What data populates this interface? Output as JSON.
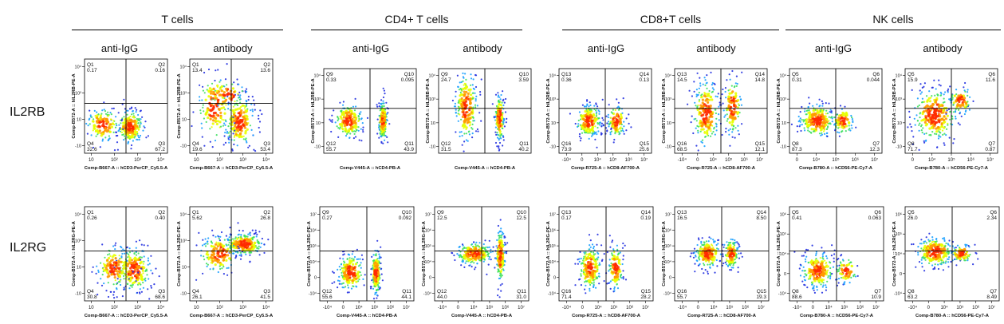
{
  "groups": [
    {
      "title": "T cells",
      "columns": [
        "anti-IgG",
        "antibody"
      ]
    },
    {
      "title": "CD4+ T cells",
      "columns": [
        "anti-IgG",
        "antibody"
      ]
    },
    {
      "title": "CD8+T cells",
      "columns": [
        "anti-IgG",
        "antibody"
      ]
    },
    {
      "title": "NK cells",
      "columns": [
        "anti-IgG",
        "antibody"
      ]
    }
  ],
  "rows": [
    "IL2RB",
    "IL2RG"
  ],
  "chart_data": [
    {
      "type": "scatter",
      "group": "T cells",
      "condition": "anti-IgG",
      "marker": "IL2RB",
      "xlabel": "Comp-B667-A :: hCD3-PerCP_Cy5.5-A",
      "ylabel": "Comp-B572-A :: hIL2RB-PE-A",
      "x_ticks": [
        "10",
        "10²",
        "10³",
        "10⁴"
      ],
      "y_ticks": [
        "10⁴",
        "10³",
        "10",
        "-10"
      ],
      "quadrants": [
        {
          "name": "Q1",
          "pct": "0.17"
        },
        {
          "name": "Q2",
          "pct": "0.16"
        },
        {
          "name": "Q3",
          "pct": "67.2"
        },
        {
          "name": "Q4",
          "pct": "32.6"
        }
      ],
      "populations": [
        {
          "x": 0.55,
          "y": 0.28,
          "sx": 0.08,
          "sy": 0.09,
          "n": 220
        },
        {
          "x": 0.22,
          "y": 0.3,
          "sx": 0.1,
          "sy": 0.09,
          "n": 140
        }
      ]
    },
    {
      "type": "scatter",
      "group": "T cells",
      "condition": "antibody",
      "marker": "IL2RB",
      "xlabel": "Comp-B667-A :: hCD3-PerCP_Cy5.5-A",
      "ylabel": "Comp-B572-A :: hIL2RB-PE-A",
      "x_ticks": [
        "10",
        "10²",
        "10³",
        "10⁴"
      ],
      "y_ticks": [
        "10⁴",
        "10³",
        "10",
        "-10"
      ],
      "quadrants": [
        {
          "name": "Q1",
          "pct": "13.4"
        },
        {
          "name": "Q2",
          "pct": "13.6"
        },
        {
          "name": "Q3",
          "pct": "53.4"
        },
        {
          "name": "Q4",
          "pct": "19.6"
        }
      ],
      "populations": [
        {
          "x": 0.6,
          "y": 0.33,
          "sx": 0.09,
          "sy": 0.14,
          "n": 220
        },
        {
          "x": 0.3,
          "y": 0.5,
          "sx": 0.1,
          "sy": 0.18,
          "n": 150
        },
        {
          "x": 0.45,
          "y": 0.62,
          "sx": 0.12,
          "sy": 0.08,
          "n": 60
        }
      ]
    },
    {
      "type": "scatter",
      "group": "CD4+ T cells",
      "condition": "anti-IgG",
      "marker": "IL2RB",
      "xlabel": "Comp-V445-A :: hCD4-PB-A",
      "ylabel": "Comp-B572-A :: hIL2RB-PE-A",
      "x_ticks": [],
      "y_ticks": [
        "10⁴",
        "10³",
        "10",
        "-10"
      ],
      "quadrants": [
        {
          "name": "Q9",
          "pct": "0.33"
        },
        {
          "name": "Q10",
          "pct": "0.095"
        },
        {
          "name": "Q11",
          "pct": "43.9"
        },
        {
          "name": "Q12",
          "pct": "55.7"
        }
      ],
      "populations": [
        {
          "x": 0.27,
          "y": 0.38,
          "sx": 0.08,
          "sy": 0.1,
          "n": 180
        },
        {
          "x": 0.64,
          "y": 0.38,
          "sx": 0.025,
          "sy": 0.12,
          "n": 170
        }
      ]
    },
    {
      "type": "scatter",
      "group": "CD4+ T cells",
      "condition": "antibody",
      "marker": "IL2RB",
      "xlabel": "Comp-V445-A :: hCD4-PB-A",
      "ylabel": "Comp-B572-A :: hIL2RB-PE-A",
      "x_ticks": [],
      "y_ticks": [
        "10⁴",
        "10³",
        "10",
        "-10"
      ],
      "quadrants": [
        {
          "name": "Q9",
          "pct": "24.7"
        },
        {
          "name": "Q10",
          "pct": "3.59"
        },
        {
          "name": "Q11",
          "pct": "40.2"
        },
        {
          "name": "Q12",
          "pct": "31.5"
        }
      ],
      "populations": [
        {
          "x": 0.3,
          "y": 0.55,
          "sx": 0.06,
          "sy": 0.2,
          "n": 210
        },
        {
          "x": 0.66,
          "y": 0.42,
          "sx": 0.025,
          "sy": 0.14,
          "n": 170
        }
      ]
    },
    {
      "type": "scatter",
      "group": "CD8+T cells",
      "condition": "anti-IgG",
      "marker": "IL2RB",
      "xlabel": "Comp-R725-A :: hCD8-AF700-A",
      "ylabel": "Comp-B572-A :: hIL2RB-PE-A",
      "x_ticks": [
        "-10⁴",
        "0",
        "10⁴",
        "10⁵",
        "10⁶",
        "10⁷"
      ],
      "y_ticks": [
        "10⁴",
        "10³",
        "10",
        "-10"
      ],
      "quadrants": [
        {
          "name": "Q13",
          "pct": "0.36"
        },
        {
          "name": "Q14",
          "pct": "0.13"
        },
        {
          "name": "Q15",
          "pct": "25.6"
        },
        {
          "name": "Q16",
          "pct": "73.9"
        }
      ],
      "populations": [
        {
          "x": 0.32,
          "y": 0.38,
          "sx": 0.07,
          "sy": 0.1,
          "n": 220
        },
        {
          "x": 0.62,
          "y": 0.38,
          "sx": 0.05,
          "sy": 0.1,
          "n": 120
        }
      ]
    },
    {
      "type": "scatter",
      "group": "CD8+T cells",
      "condition": "antibody",
      "marker": "IL2RB",
      "xlabel": "Comp-R725-A :: hCD8-AF700-A",
      "ylabel": "Comp-B572-A :: hIL2RB-PE-A",
      "x_ticks": [
        "-10⁴",
        "0",
        "10⁴",
        "10⁵",
        "10⁶",
        "10⁷"
      ],
      "y_ticks": [
        "10⁴",
        "10³",
        "10",
        "-10"
      ],
      "quadrants": [
        {
          "name": "Q13",
          "pct": "14.5"
        },
        {
          "name": "Q14",
          "pct": "14.8"
        },
        {
          "name": "Q15",
          "pct": "12.1"
        },
        {
          "name": "Q16",
          "pct": "68.5"
        }
      ],
      "populations": [
        {
          "x": 0.34,
          "y": 0.48,
          "sx": 0.07,
          "sy": 0.2,
          "n": 220
        },
        {
          "x": 0.63,
          "y": 0.55,
          "sx": 0.05,
          "sy": 0.17,
          "n": 130
        }
      ]
    },
    {
      "type": "scatter",
      "group": "NK cells",
      "condition": "anti-IgG",
      "marker": "IL2RB",
      "xlabel": "Comp-B780-A :: hCD56-PE-Cy7-A",
      "ylabel": "Comp-B572-A :: hIL2RB-PE-A",
      "x_ticks": [
        "0",
        "10⁴",
        "10⁵",
        "10⁶",
        "10⁷"
      ],
      "y_ticks": [
        "10⁴",
        "10³",
        "10",
        "-10"
      ],
      "quadrants": [
        {
          "name": "Q5",
          "pct": "0.31"
        },
        {
          "name": "Q6",
          "pct": "0.044"
        },
        {
          "name": "Q7",
          "pct": "12.3"
        },
        {
          "name": "Q8",
          "pct": "87.3"
        }
      ],
      "populations": [
        {
          "x": 0.3,
          "y": 0.38,
          "sx": 0.1,
          "sy": 0.1,
          "n": 250
        },
        {
          "x": 0.58,
          "y": 0.38,
          "sx": 0.06,
          "sy": 0.08,
          "n": 90
        }
      ]
    },
    {
      "type": "scatter",
      "group": "NK cells",
      "condition": "antibody",
      "marker": "IL2RB",
      "xlabel": "Comp-B780-A :: hCD56-PE-Cy7-A",
      "ylabel": "Comp-B572-A :: hIL2RB-PE-A",
      "x_ticks": [
        "0",
        "10⁴",
        "10⁵",
        "10⁶",
        "10⁷"
      ],
      "y_ticks": [
        "10⁴",
        "10³",
        "10",
        "-10"
      ],
      "quadrants": [
        {
          "name": "Q5",
          "pct": "15.9"
        },
        {
          "name": "Q6",
          "pct": "11.6"
        },
        {
          "name": "Q7",
          "pct": "0.87"
        },
        {
          "name": "Q8",
          "pct": "71.7"
        }
      ],
      "populations": [
        {
          "x": 0.32,
          "y": 0.45,
          "sx": 0.12,
          "sy": 0.16,
          "n": 280
        },
        {
          "x": 0.6,
          "y": 0.62,
          "sx": 0.06,
          "sy": 0.08,
          "n": 80
        }
      ]
    },
    {
      "type": "scatter",
      "group": "T cells",
      "condition": "anti-IgG",
      "marker": "IL2RG",
      "xlabel": "Comp-B667-A :: hCD3-PerCP_Cy5.5-A",
      "ylabel": "Comp-B572-A :: hIL2RG-PE-A",
      "x_ticks": [
        "10",
        "10²",
        "10³",
        "10⁴"
      ],
      "y_ticks": [
        "10⁴",
        "10³",
        "10",
        "-10"
      ],
      "quadrants": [
        {
          "name": "Q1",
          "pct": "0.26"
        },
        {
          "name": "Q2",
          "pct": "0.40"
        },
        {
          "name": "Q3",
          "pct": "68.6"
        },
        {
          "name": "Q4",
          "pct": "30.8"
        }
      ],
      "populations": [
        {
          "x": 0.6,
          "y": 0.33,
          "sx": 0.1,
          "sy": 0.12,
          "n": 240
        },
        {
          "x": 0.35,
          "y": 0.35,
          "sx": 0.1,
          "sy": 0.12,
          "n": 150
        }
      ]
    },
    {
      "type": "scatter",
      "group": "T cells",
      "condition": "antibody",
      "marker": "IL2RG",
      "xlabel": "Comp-B667-A :: hCD3-PerCP_Cy5.5-A",
      "ylabel": "Comp-B572-A :: hIL2RG-PE-A",
      "x_ticks": [
        "10",
        "10²",
        "10³",
        "10⁴"
      ],
      "y_ticks": [
        "10⁴",
        "10³",
        "10",
        "-10"
      ],
      "quadrants": [
        {
          "name": "Q1",
          "pct": "5.62"
        },
        {
          "name": "Q2",
          "pct": "26.8"
        },
        {
          "name": "Q3",
          "pct": "41.5"
        },
        {
          "name": "Q4",
          "pct": "26.1"
        }
      ],
      "populations": [
        {
          "x": 0.65,
          "y": 0.6,
          "sx": 0.12,
          "sy": 0.06,
          "n": 250
        },
        {
          "x": 0.35,
          "y": 0.5,
          "sx": 0.12,
          "sy": 0.1,
          "n": 160
        }
      ]
    },
    {
      "type": "scatter",
      "group": "CD4+ T cells",
      "condition": "anti-IgG",
      "marker": "IL2RG",
      "xlabel": "Comp-V445-A :: hCD4-PB-A",
      "ylabel": "Comp-B572-A :: hIL2RG-PE-A",
      "x_ticks": [
        "-10⁴",
        "0",
        "10⁴",
        "10⁵",
        "10⁶",
        "10⁷"
      ],
      "y_ticks": [
        "10⁷",
        "10⁶",
        "10⁵",
        "10⁴",
        "0",
        "-10⁴"
      ],
      "quadrants": [
        {
          "name": "Q9",
          "pct": "0.27"
        },
        {
          "name": "Q10",
          "pct": "0.092"
        },
        {
          "name": "Q11",
          "pct": "44.1"
        },
        {
          "name": "Q12",
          "pct": "55.6"
        }
      ],
      "populations": [
        {
          "x": 0.33,
          "y": 0.3,
          "sx": 0.07,
          "sy": 0.1,
          "n": 200
        },
        {
          "x": 0.6,
          "y": 0.3,
          "sx": 0.025,
          "sy": 0.12,
          "n": 180
        }
      ]
    },
    {
      "type": "scatter",
      "group": "CD4+ T cells",
      "condition": "antibody",
      "marker": "IL2RG",
      "xlabel": "Comp-V445-A :: hCD4-PB-A",
      "ylabel": "Comp-B572-A :: hIL2RG-PE-A",
      "x_ticks": [
        "-10⁴",
        "0",
        "10⁴",
        "10⁵",
        "10⁶",
        "10⁷"
      ],
      "y_ticks": [
        "10⁷",
        "10⁶",
        "10⁵",
        "10⁴",
        "0",
        "-10⁴"
      ],
      "quadrants": [
        {
          "name": "Q9",
          "pct": "12.5"
        },
        {
          "name": "Q10",
          "pct": "12.5"
        },
        {
          "name": "Q11",
          "pct": "31.0"
        },
        {
          "name": "Q12",
          "pct": "44.0"
        }
      ],
      "populations": [
        {
          "x": 0.42,
          "y": 0.5,
          "sx": 0.1,
          "sy": 0.06,
          "n": 220
        },
        {
          "x": 0.7,
          "y": 0.48,
          "sx": 0.025,
          "sy": 0.14,
          "n": 180
        }
      ]
    },
    {
      "type": "scatter",
      "group": "CD8+T cells",
      "condition": "anti-IgG",
      "marker": "IL2RG",
      "xlabel": "Comp-R725-A :: hCD8-AF700-A",
      "ylabel": "Comp-B572-A :: hIL2RG-PE-A",
      "x_ticks": [
        "-10⁴",
        "0",
        "10⁴",
        "10⁵",
        "10⁶",
        "10⁷"
      ],
      "y_ticks": [
        "10⁷",
        "10⁶",
        "10⁵",
        "10⁴",
        "0",
        "-10⁴"
      ],
      "quadrants": [
        {
          "name": "Q13",
          "pct": "0.17"
        },
        {
          "name": "Q14",
          "pct": "0.19"
        },
        {
          "name": "Q15",
          "pct": "28.2"
        },
        {
          "name": "Q16",
          "pct": "71.4"
        }
      ],
      "populations": [
        {
          "x": 0.33,
          "y": 0.35,
          "sx": 0.06,
          "sy": 0.12,
          "n": 200
        },
        {
          "x": 0.6,
          "y": 0.35,
          "sx": 0.04,
          "sy": 0.12,
          "n": 130
        }
      ]
    },
    {
      "type": "scatter",
      "group": "CD8+T cells",
      "condition": "antibody",
      "marker": "IL2RG",
      "xlabel": "Comp-R725-A :: hCD8-AF700-A",
      "ylabel": "Comp-B572-A :: hIL2RG-PE-A",
      "x_ticks": [
        "-10⁴",
        "0",
        "10⁴",
        "10⁵",
        "10⁶",
        "10⁷"
      ],
      "y_ticks": [
        "10⁷",
        "10⁶",
        "10⁵",
        "10⁴",
        "0",
        "-10⁴"
      ],
      "quadrants": [
        {
          "name": "Q13",
          "pct": "16.5"
        },
        {
          "name": "Q14",
          "pct": "8.50"
        },
        {
          "name": "Q15",
          "pct": "19.3"
        },
        {
          "name": "Q16",
          "pct": "55.7"
        }
      ],
      "populations": [
        {
          "x": 0.35,
          "y": 0.5,
          "sx": 0.07,
          "sy": 0.08,
          "n": 200
        },
        {
          "x": 0.6,
          "y": 0.5,
          "sx": 0.04,
          "sy": 0.08,
          "n": 130
        }
      ]
    },
    {
      "type": "scatter",
      "group": "NK cells",
      "condition": "anti-IgG",
      "marker": "IL2RG",
      "xlabel": "Comp-B780-A :: hCD56-PE-Cy7-A",
      "ylabel": "Comp-B572-A :: hIL2RG-PE-A",
      "x_ticks": [
        "-10⁴",
        "0",
        "10⁴",
        "10⁵",
        "10⁶",
        "10⁷"
      ],
      "y_ticks": [
        "10⁶",
        "10⁵",
        "10⁴",
        "0",
        "-10⁴"
      ],
      "quadrants": [
        {
          "name": "Q5",
          "pct": "0.41"
        },
        {
          "name": "Q6",
          "pct": "0.063"
        },
        {
          "name": "Q7",
          "pct": "10.9"
        },
        {
          "name": "Q8",
          "pct": "88.6"
        }
      ],
      "populations": [
        {
          "x": 0.3,
          "y": 0.32,
          "sx": 0.09,
          "sy": 0.1,
          "n": 220
        },
        {
          "x": 0.6,
          "y": 0.32,
          "sx": 0.06,
          "sy": 0.07,
          "n": 80
        }
      ]
    },
    {
      "type": "scatter",
      "group": "NK cells",
      "condition": "antibody",
      "marker": "IL2RG",
      "xlabel": "Comp-B780-A :: hCD56-PE-Cy7-A",
      "ylabel": "Comp-B572-A :: hIL2RG-PE-A",
      "x_ticks": [
        "-10⁴",
        "0",
        "10⁴",
        "10⁵",
        "10⁶",
        "10⁷"
      ],
      "y_ticks": [
        "10⁶",
        "10⁵",
        "10⁴",
        "0",
        "-10⁴"
      ],
      "quadrants": [
        {
          "name": "Q5",
          "pct": "26.0"
        },
        {
          "name": "Q6",
          "pct": "2.34"
        },
        {
          "name": "Q7",
          "pct": "8.49"
        },
        {
          "name": "Q8",
          "pct": "63.2"
        }
      ],
      "populations": [
        {
          "x": 0.32,
          "y": 0.52,
          "sx": 0.1,
          "sy": 0.08,
          "n": 240
        },
        {
          "x": 0.6,
          "y": 0.5,
          "sx": 0.06,
          "sy": 0.05,
          "n": 80
        }
      ]
    }
  ]
}
